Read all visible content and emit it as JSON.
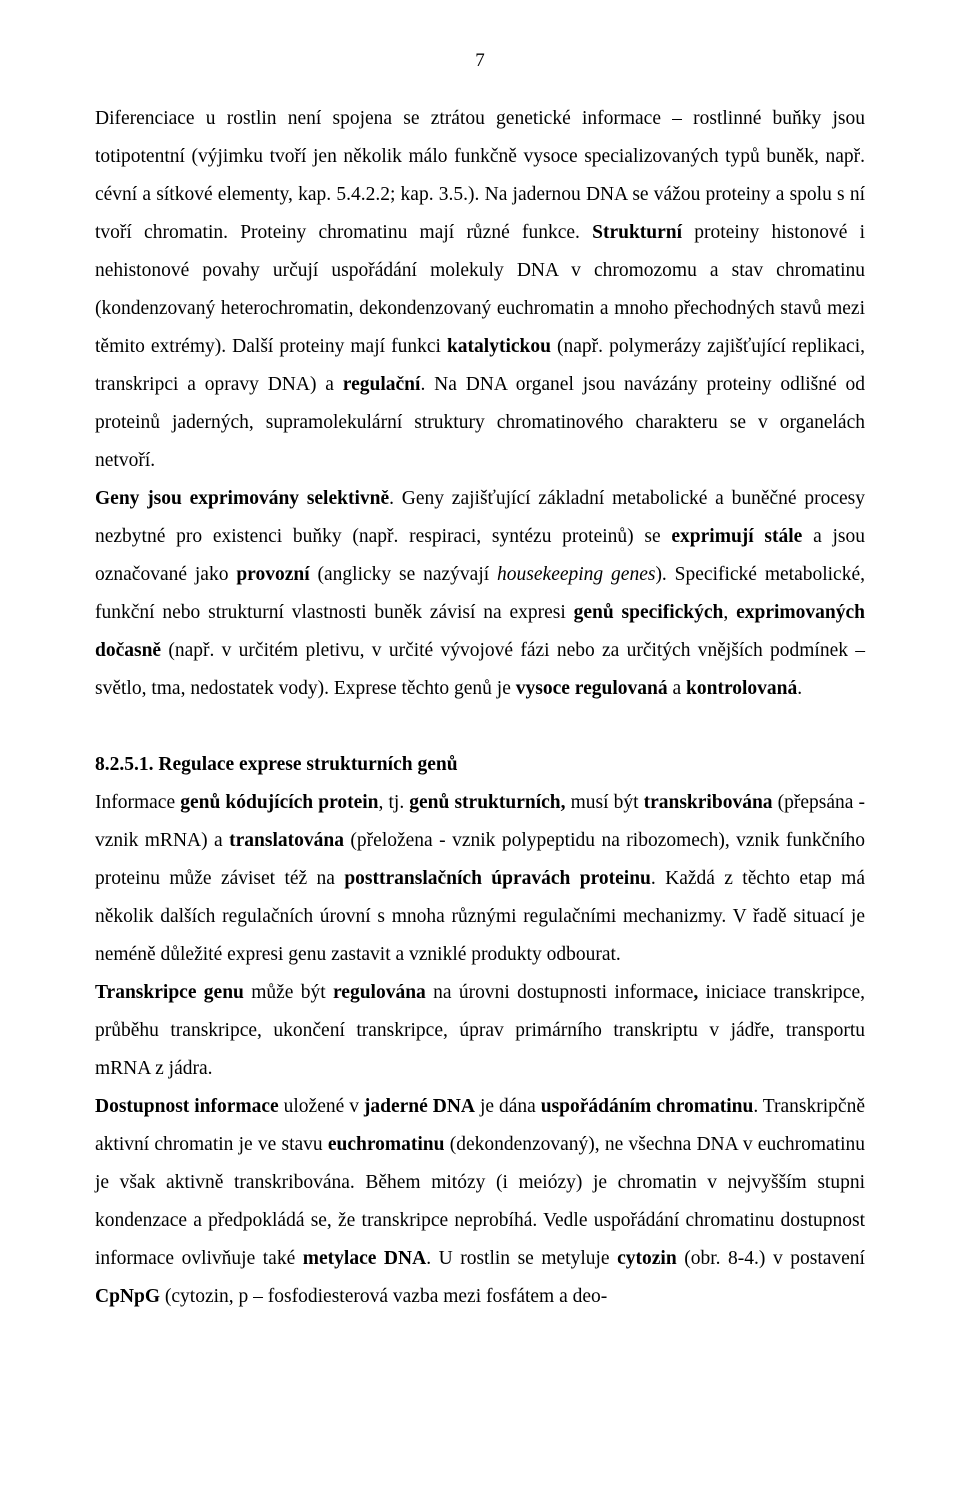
{
  "page_number": "7",
  "paragraph1_html": "Diferenciace u rostlin není spojena se ztrátou genetické informace – rostlinné buňky jsou totipotentní (výjimku tvoří jen několik málo funkčně vysoce specializovaných typů buněk, např. cévní a sítkové elementy, kap. 5.4.2.2; kap. 3.5.). Na jadernou DNA se vážou proteiny a spolu s ní tvoří chromatin. Proteiny chromatinu mají různé funkce. <b>Strukturní</b> proteiny histonové i nehistonové povahy určují uspořádání molekuly DNA v chromozomu a stav chromatinu (kondenzovaný heterochromatin, dekondenzovaný euchromatin a mnoho přechodných stavů mezi těmito extrémy). Další proteiny mají funkci <b>katalytickou</b> (např. polymerázy zajišťující replikaci, transkripci a opravy DNA) a <b>regulační</b>. Na DNA organel jsou navázány proteiny odlišné od proteinů jaderných, supramolekulární struktury chromatinového charakteru se v organelách netvoří.",
  "paragraph2_html": "<b>Geny jsou exprimovány selektivně</b>. Geny zajišťující základní metabolické a buněčné procesy nezbytné pro existenci buňky (např. respiraci, syntézu proteinů) se <b>exprimují stále</b> a jsou označované jako <b>provozní</b> (anglicky se nazývají <i>housekeeping genes</i>). Specifické metabolické, funkční nebo strukturní vlastnosti buněk závisí na expresi <b>genů specifických</b>, <b>exprimovaných dočasně</b> (např. v určitém pletivu, v určité vývojové fázi nebo za určitých vnějších podmínek – světlo, tma, nedostatek vody). Exprese těchto genů je <b>vysoce regulovaná</b> a <b>kontrolovaná</b>.",
  "section_heading": "8.2.5.1. Regulace exprese strukturních genů",
  "paragraph3_html": "Informace <b>genů kódujících protein</b>, tj. <b>genů strukturních,</b> musí být <b>transkribována</b> (přepsána - vznik mRNA) a <b>translatována</b> (přeložena - vznik polypeptidu na ribozomech), vznik funkčního proteinu může záviset též na <b>posttranslačních úpravách proteinu</b>. Každá z těchto etap má několik dalších regulačních úrovní s mnoha různými regulačními mechanizmy. V řadě situací je neméně důležité expresi genu zastavit a vzniklé produkty odbourat.",
  "paragraph4_html": "<b>Transkripce genu</b> může být <b>regulována</b> na úrovni dostupnosti informace<b>,</b> iniciace transkripce, průběhu transkripce, ukončení transkripce, úprav primárního transkriptu v jádře, transportu mRNA z jádra.",
  "paragraph5_html": "<b>Dostupnost informace</b> uložené v <b>jaderné DNA</b> je dána <b>uspořádáním chromatinu</b>. Transkripčně aktivní chromatin je ve stavu <b>euchromatinu</b> (dekondenzovaný), ne všechna DNA v euchromatinu je však aktivně transkribována. Během mitózy (i meiózy) je chromatin v nejvyšším stupni kondenzace a předpokládá se, že transkripce neprobíhá. Vedle uspořádání chromatinu dostupnost informace ovlivňuje také <b>metylace DNA</b>. U rostlin se metyluje <b>cytozin</b> (obr. 8-4.) v postavení <b>CpNpG</b> (cytozin, p – fosfodiesterová vazba mezi fosfátem a deo-"
}
